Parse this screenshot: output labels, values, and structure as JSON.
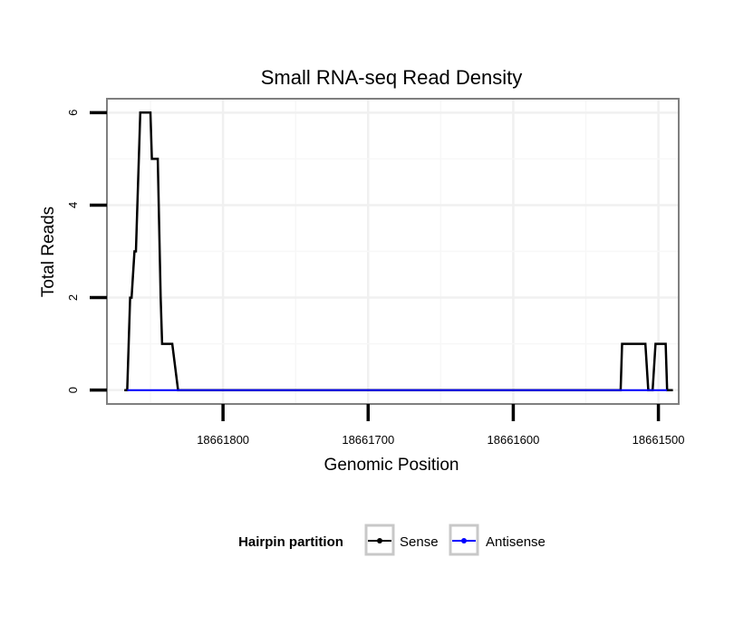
{
  "chart_data": {
    "type": "line",
    "title": "Small RNA-seq Read Density",
    "xlabel": "Genomic Position",
    "ylabel": "Total Reads",
    "x_reversed": true,
    "xlim": [
      18661880,
      18661486
    ],
    "ylim": [
      -0.3,
      6.3
    ],
    "xticks": [
      18661800,
      18661700,
      18661600,
      18661500
    ],
    "xtick_labels": [
      "18661800",
      "18661700",
      "18661600",
      "18661500"
    ],
    "yticks": [
      0,
      2,
      4,
      6
    ],
    "ytick_labels": [
      "0",
      "2",
      "4",
      "6"
    ],
    "grid": true,
    "legend": {
      "title": "Hairpin partition",
      "position": "bottom",
      "entries": [
        {
          "name": "Sense",
          "color": "#000000"
        },
        {
          "name": "Antisense",
          "color": "#0000ff"
        }
      ]
    },
    "series": [
      {
        "name": "Sense",
        "color": "#000000",
        "x": [
          18661868,
          18661866,
          18661864,
          18661863,
          18661861,
          18661860,
          18661858,
          18661857,
          18661856,
          18661854,
          18661850,
          18661849,
          18661847,
          18661845,
          18661843,
          18661842,
          18661839,
          18661837,
          18661835,
          18661831,
          18661831,
          18661700,
          18661600,
          18661526,
          18661525,
          18661521,
          18661520,
          18661509,
          18661507,
          18661504,
          18661502,
          18661500,
          18661499,
          18661495,
          18661494,
          18661490
        ],
        "y": [
          0,
          0,
          2,
          2,
          3,
          3,
          5,
          6,
          6,
          6,
          6,
          5,
          5,
          5,
          2,
          1,
          1,
          1,
          1,
          0,
          0,
          0,
          0,
          0,
          1,
          1,
          1,
          1,
          0,
          0,
          1,
          1,
          1,
          1,
          0,
          0
        ]
      },
      {
        "name": "Antisense",
        "color": "#0000ff",
        "x": [
          18661866,
          18661831,
          18661526,
          18661509,
          18661502,
          18661494
        ],
        "y": [
          0,
          0,
          0,
          0,
          0,
          0
        ]
      }
    ]
  }
}
